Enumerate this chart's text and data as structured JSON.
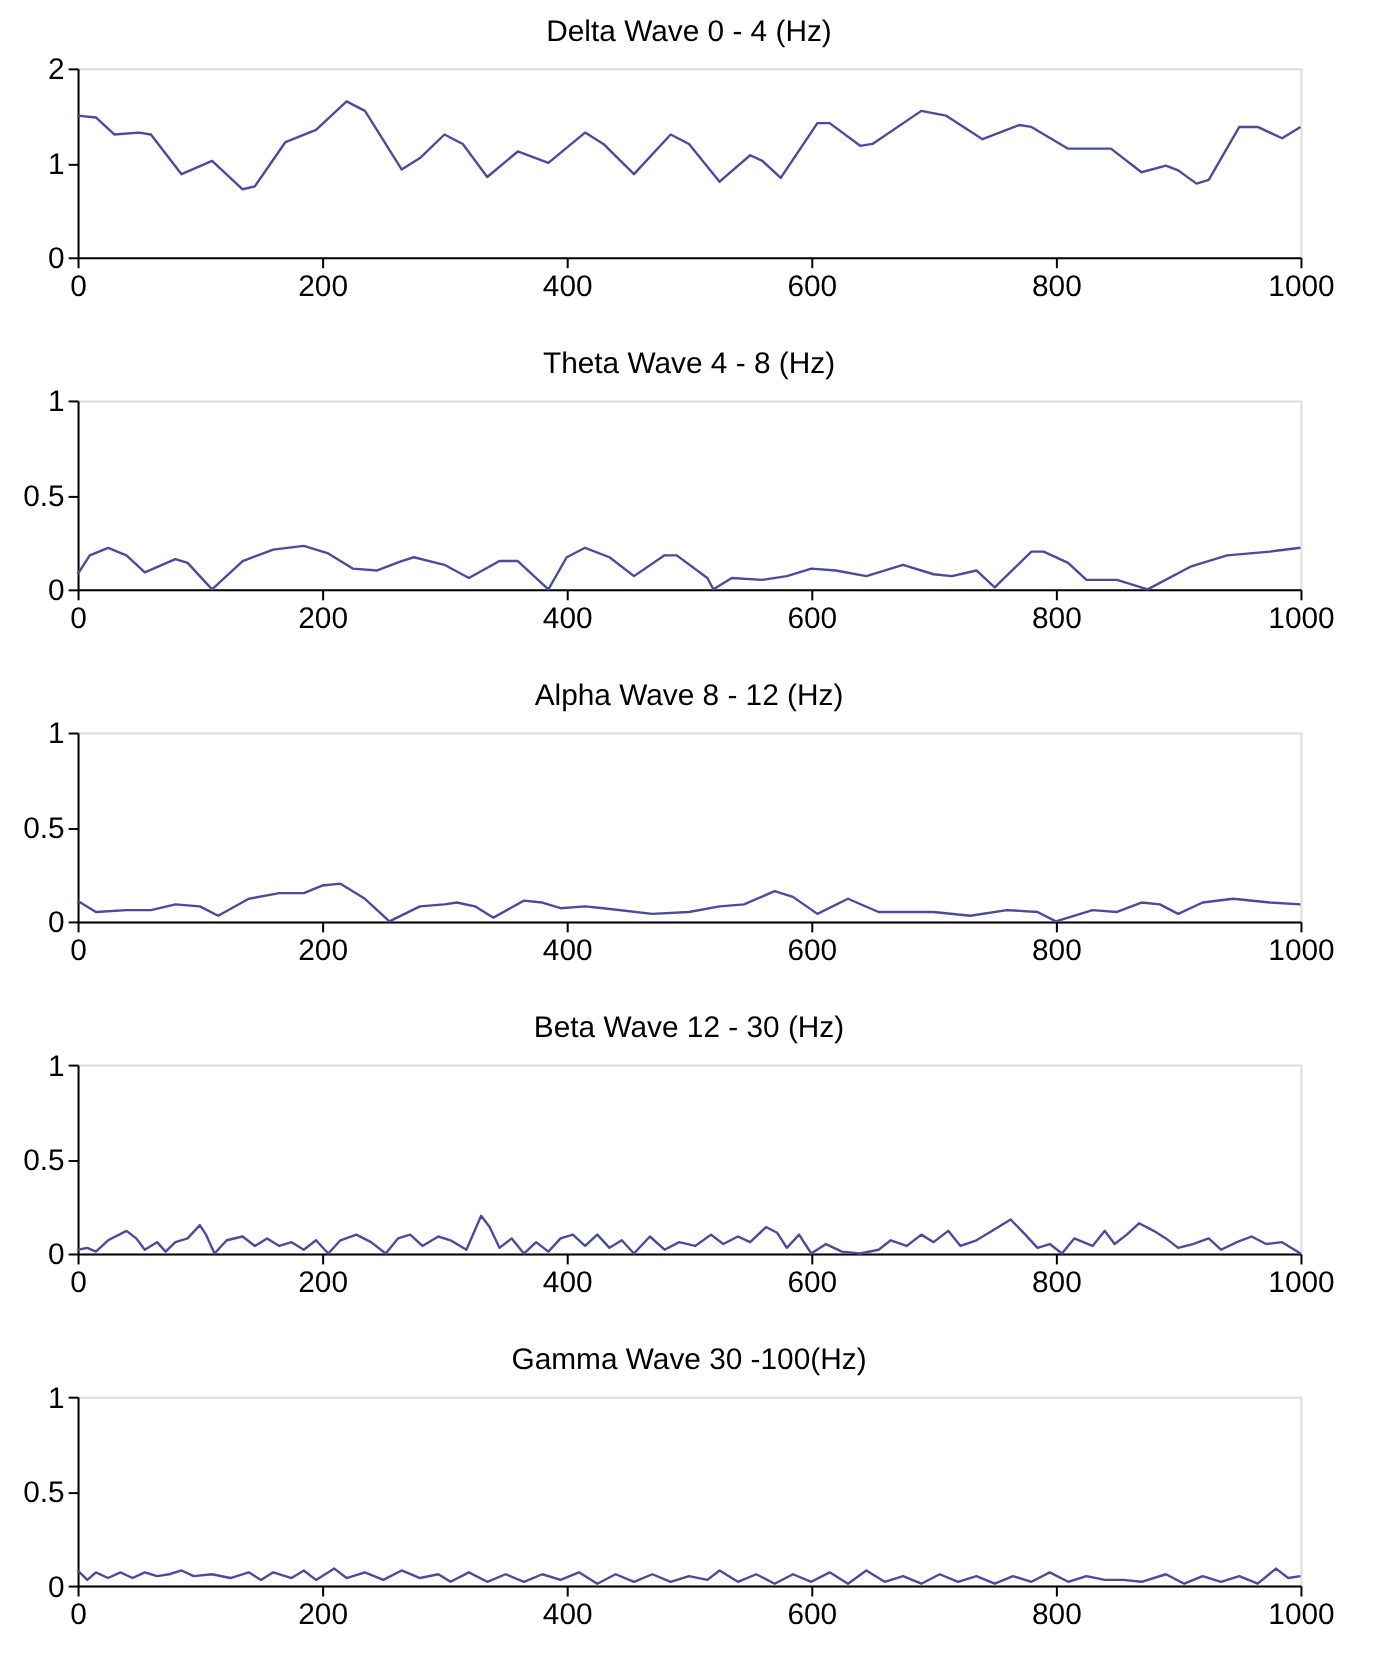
{
  "chart_data": [
    {
      "type": "line",
      "title": "Delta Wave 0 - 4 (Hz)",
      "color": "#4b4b9b",
      "xlim": [
        0,
        1000
      ],
      "xticks": [
        0,
        200,
        400,
        600,
        800,
        1000
      ],
      "ylim": [
        0,
        2
      ],
      "yticks": [
        0,
        1,
        2
      ],
      "grid": false,
      "x": [
        0,
        15,
        30,
        50,
        60,
        85,
        110,
        135,
        145,
        170,
        195,
        220,
        235,
        265,
        280,
        300,
        315,
        335,
        360,
        385,
        415,
        430,
        455,
        485,
        500,
        525,
        550,
        560,
        575,
        605,
        615,
        640,
        650,
        690,
        710,
        740,
        770,
        780,
        810,
        830,
        845,
        870,
        890,
        900,
        915,
        925,
        950,
        965,
        985,
        1000
      ],
      "values": [
        1.5,
        1.48,
        1.3,
        1.32,
        1.3,
        0.88,
        1.02,
        0.72,
        0.75,
        1.22,
        1.35,
        1.65,
        1.55,
        0.93,
        1.05,
        1.3,
        1.2,
        0.85,
        1.12,
        1.0,
        1.32,
        1.2,
        0.88,
        1.3,
        1.2,
        0.8,
        1.08,
        1.02,
        0.84,
        1.42,
        1.42,
        1.18,
        1.2,
        1.55,
        1.5,
        1.25,
        1.4,
        1.38,
        1.15,
        1.15,
        1.15,
        0.9,
        0.97,
        0.92,
        0.78,
        0.82,
        1.38,
        1.38,
        1.26,
        1.38
      ]
    },
    {
      "type": "line",
      "title": "Theta Wave 4 - 8 (Hz)",
      "color": "#4b4b9b",
      "xlim": [
        0,
        1000
      ],
      "xticks": [
        0,
        200,
        400,
        600,
        800,
        1000
      ],
      "ylim": [
        0,
        1
      ],
      "yticks": [
        0,
        0.5,
        1
      ],
      "grid": false,
      "x": [
        0,
        10,
        25,
        40,
        55,
        80,
        90,
        110,
        135,
        160,
        185,
        205,
        225,
        245,
        265,
        275,
        300,
        320,
        345,
        360,
        385,
        400,
        415,
        435,
        455,
        480,
        490,
        515,
        520,
        535,
        560,
        580,
        600,
        620,
        645,
        675,
        700,
        715,
        735,
        750,
        780,
        790,
        810,
        825,
        850,
        875,
        910,
        940,
        975,
        1000
      ],
      "values": [
        0.08,
        0.18,
        0.22,
        0.18,
        0.09,
        0.16,
        0.14,
        0.0,
        0.15,
        0.21,
        0.23,
        0.19,
        0.11,
        0.1,
        0.15,
        0.17,
        0.13,
        0.06,
        0.15,
        0.15,
        0.0,
        0.17,
        0.22,
        0.17,
        0.07,
        0.18,
        0.18,
        0.06,
        0.0,
        0.06,
        0.05,
        0.07,
        0.11,
        0.1,
        0.07,
        0.13,
        0.08,
        0.07,
        0.1,
        0.01,
        0.2,
        0.2,
        0.14,
        0.05,
        0.05,
        0.0,
        0.12,
        0.18,
        0.2,
        0.22
      ]
    },
    {
      "type": "line",
      "title": "Alpha Wave 8 - 12 (Hz)",
      "color": "#4b4b9b",
      "xlim": [
        0,
        1000
      ],
      "xticks": [
        0,
        200,
        400,
        600,
        800,
        1000
      ],
      "ylim": [
        0,
        1
      ],
      "yticks": [
        0,
        0.5,
        1
      ],
      "grid": false,
      "x": [
        0,
        15,
        40,
        60,
        80,
        100,
        115,
        140,
        165,
        185,
        200,
        215,
        235,
        255,
        280,
        300,
        310,
        325,
        340,
        365,
        380,
        395,
        415,
        430,
        470,
        500,
        525,
        545,
        570,
        585,
        605,
        630,
        655,
        700,
        730,
        760,
        785,
        800,
        830,
        850,
        870,
        885,
        900,
        920,
        945,
        975,
        1000
      ],
      "values": [
        0.11,
        0.05,
        0.06,
        0.06,
        0.09,
        0.08,
        0.03,
        0.12,
        0.15,
        0.15,
        0.19,
        0.2,
        0.12,
        0.0,
        0.08,
        0.09,
        0.1,
        0.08,
        0.02,
        0.11,
        0.1,
        0.07,
        0.08,
        0.07,
        0.04,
        0.05,
        0.08,
        0.09,
        0.16,
        0.13,
        0.04,
        0.12,
        0.05,
        0.05,
        0.03,
        0.06,
        0.05,
        0.0,
        0.06,
        0.05,
        0.1,
        0.09,
        0.04,
        0.1,
        0.12,
        0.1,
        0.09
      ]
    },
    {
      "type": "line",
      "title": "Beta Wave 12 - 30 (Hz)",
      "color": "#4b4b9b",
      "xlim": [
        0,
        1000
      ],
      "xticks": [
        0,
        200,
        400,
        600,
        800,
        1000
      ],
      "ylim": [
        0,
        1
      ],
      "yticks": [
        0,
        0.5,
        1
      ],
      "grid": false,
      "x": [
        0,
        8,
        15,
        25,
        40,
        48,
        55,
        65,
        72,
        80,
        90,
        100,
        105,
        112,
        122,
        135,
        145,
        155,
        165,
        175,
        185,
        195,
        205,
        215,
        228,
        240,
        252,
        262,
        272,
        282,
        295,
        305,
        318,
        330,
        337,
        345,
        355,
        365,
        375,
        385,
        395,
        405,
        415,
        425,
        435,
        445,
        455,
        468,
        480,
        492,
        505,
        518,
        528,
        540,
        550,
        563,
        572,
        580,
        590,
        600,
        612,
        625,
        640,
        655,
        665,
        678,
        690,
        700,
        712,
        722,
        735,
        748,
        763,
        775,
        785,
        795,
        805,
        815,
        830,
        840,
        848,
        858,
        868,
        880,
        890,
        900,
        912,
        925,
        935,
        948,
        960,
        972,
        985,
        1000
      ],
      "values": [
        0.02,
        0.03,
        0.01,
        0.07,
        0.12,
        0.08,
        0.02,
        0.06,
        0.01,
        0.06,
        0.08,
        0.15,
        0.1,
        0.0,
        0.07,
        0.09,
        0.04,
        0.08,
        0.04,
        0.06,
        0.02,
        0.07,
        0.0,
        0.07,
        0.1,
        0.06,
        0.0,
        0.08,
        0.1,
        0.04,
        0.09,
        0.07,
        0.02,
        0.2,
        0.14,
        0.03,
        0.08,
        0.0,
        0.06,
        0.01,
        0.08,
        0.1,
        0.04,
        0.1,
        0.03,
        0.07,
        0.0,
        0.09,
        0.02,
        0.06,
        0.04,
        0.1,
        0.05,
        0.09,
        0.06,
        0.14,
        0.11,
        0.03,
        0.1,
        0.0,
        0.05,
        0.01,
        0.0,
        0.02,
        0.07,
        0.04,
        0.1,
        0.06,
        0.12,
        0.04,
        0.07,
        0.12,
        0.18,
        0.1,
        0.03,
        0.05,
        0.0,
        0.08,
        0.04,
        0.12,
        0.05,
        0.1,
        0.16,
        0.12,
        0.08,
        0.03,
        0.05,
        0.08,
        0.02,
        0.06,
        0.09,
        0.05,
        0.06,
        0.0
      ]
    },
    {
      "type": "line",
      "title": "Gamma Wave 30 -100(Hz)",
      "color": "#4b4b9b",
      "xlim": [
        0,
        1000
      ],
      "xticks": [
        0,
        200,
        400,
        600,
        800,
        1000
      ],
      "ylim": [
        0,
        1
      ],
      "yticks": [
        0,
        0.5,
        1
      ],
      "grid": false,
      "x": [
        0,
        8,
        15,
        25,
        35,
        45,
        55,
        65,
        75,
        85,
        95,
        110,
        125,
        140,
        150,
        160,
        175,
        185,
        195,
        210,
        220,
        235,
        250,
        265,
        280,
        295,
        305,
        320,
        335,
        350,
        365,
        380,
        395,
        410,
        425,
        440,
        455,
        470,
        485,
        500,
        515,
        525,
        540,
        555,
        570,
        585,
        600,
        615,
        630,
        645,
        660,
        675,
        690,
        705,
        720,
        735,
        750,
        765,
        780,
        795,
        810,
        825,
        840,
        855,
        870,
        890,
        905,
        920,
        935,
        950,
        965,
        980,
        990,
        1000
      ],
      "values": [
        0.08,
        0.03,
        0.07,
        0.04,
        0.07,
        0.04,
        0.07,
        0.05,
        0.06,
        0.08,
        0.05,
        0.06,
        0.04,
        0.07,
        0.03,
        0.07,
        0.04,
        0.08,
        0.03,
        0.09,
        0.04,
        0.07,
        0.03,
        0.08,
        0.04,
        0.06,
        0.02,
        0.07,
        0.02,
        0.06,
        0.02,
        0.06,
        0.03,
        0.07,
        0.01,
        0.06,
        0.02,
        0.06,
        0.02,
        0.05,
        0.03,
        0.08,
        0.02,
        0.06,
        0.01,
        0.06,
        0.02,
        0.07,
        0.01,
        0.08,
        0.02,
        0.05,
        0.01,
        0.06,
        0.02,
        0.05,
        0.01,
        0.05,
        0.02,
        0.07,
        0.02,
        0.05,
        0.03,
        0.03,
        0.02,
        0.06,
        0.01,
        0.05,
        0.02,
        0.05,
        0.01,
        0.09,
        0.04,
        0.05
      ]
    }
  ]
}
